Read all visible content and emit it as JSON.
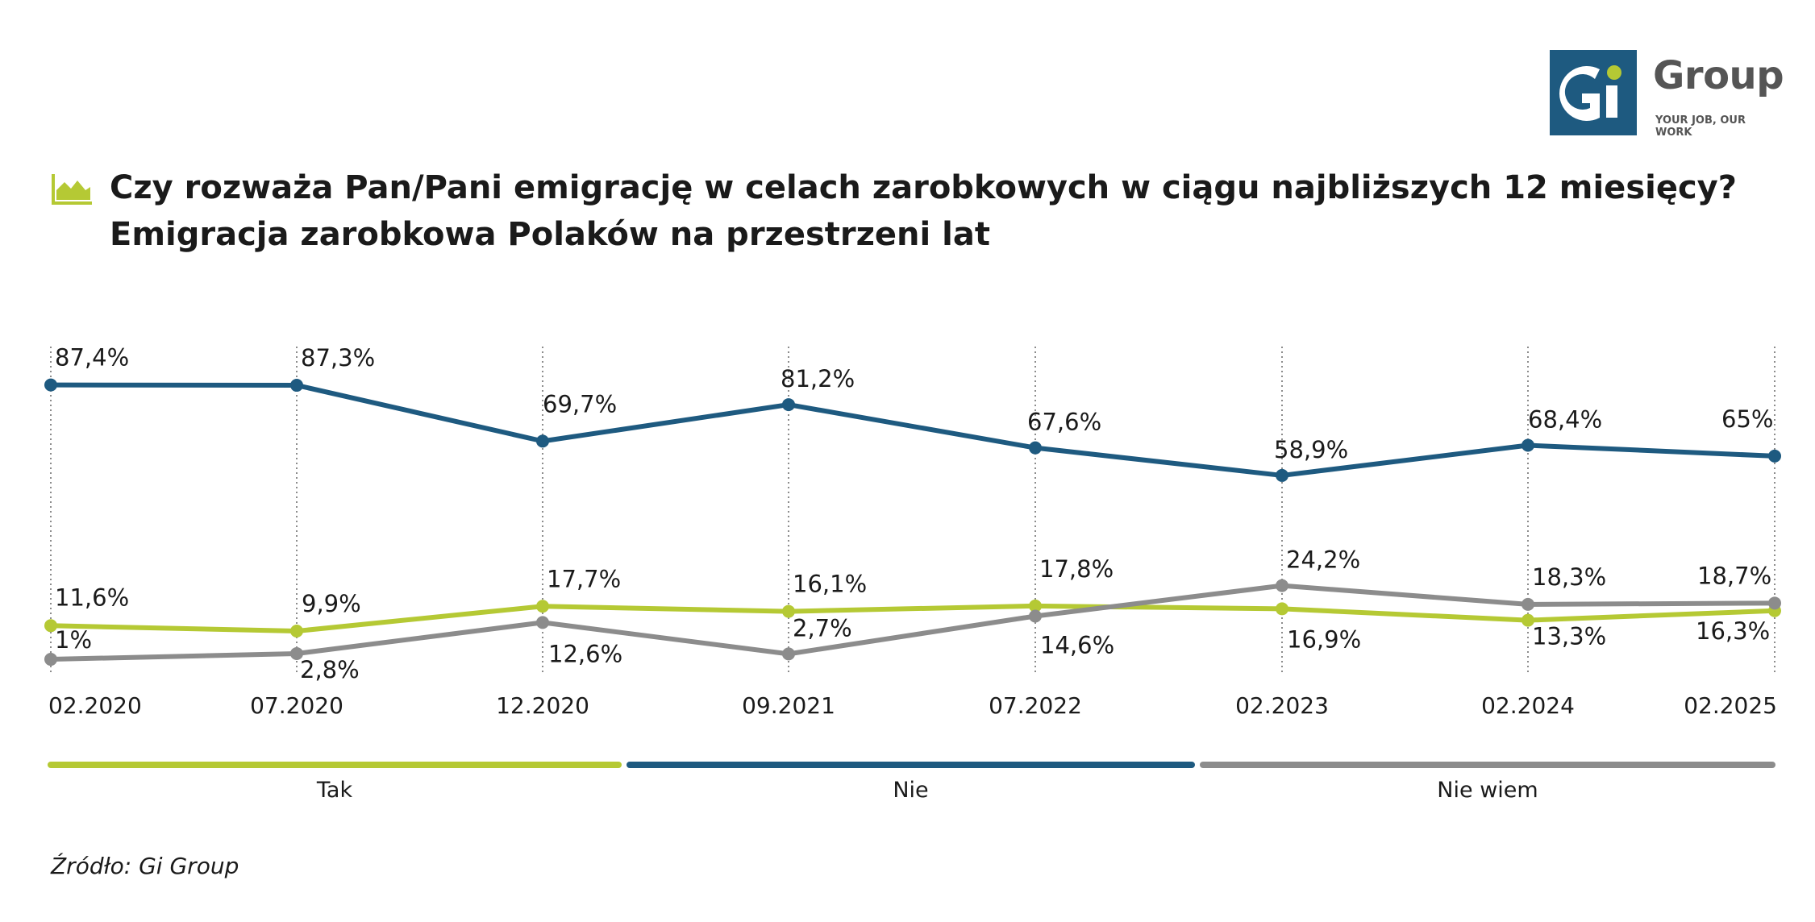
{
  "brand": {
    "name": "Group",
    "mark": "Gi",
    "tagline": "YOUR JOB, OUR WORK"
  },
  "title": {
    "line1": "Czy rozważa Pan/Pani emigrację w celach zarobkowych w ciągu najbliższych 12 miesięcy?",
    "line2": "Emigracja zarobkowa Polaków na przestrzeni lat"
  },
  "source": "Źródło: Gi Group",
  "colors": {
    "tak": "#b5c934",
    "nie": "#1e5a80",
    "nie_wiem": "#8c8c8c",
    "grid": "#666666"
  },
  "chart_data": {
    "type": "line",
    "categories": [
      "02.2020",
      "07.2020",
      "12.2020",
      "09.2021",
      "07.2022",
      "02.2023",
      "02.2024",
      "02.2025"
    ],
    "ylim": [
      0,
      100
    ],
    "series": [
      {
        "key": "tak",
        "name": "Tak",
        "values": [
          11.6,
          9.9,
          17.7,
          16.1,
          17.8,
          16.9,
          13.3,
          16.3
        ],
        "labels": [
          "11,6%",
          "9,9%",
          "17,7%",
          "16,1%",
          "17,8%",
          "16,9%",
          "13,3%",
          "16,3%"
        ]
      },
      {
        "key": "nie",
        "name": "Nie",
        "values": [
          87.4,
          87.3,
          69.7,
          81.2,
          67.6,
          58.9,
          68.4,
          65
        ],
        "labels": [
          "87,4%",
          "87,3%",
          "69,7%",
          "81,2%",
          "67,6%",
          "58,9%",
          "68,4%",
          "65%"
        ]
      },
      {
        "key": "nie_wiem",
        "name": "Nie wiem",
        "values": [
          1,
          2.8,
          12.6,
          2.7,
          14.6,
          24.2,
          18.3,
          18.7
        ],
        "labels": [
          "1%",
          "2,8%",
          "12,6%",
          "2,7%",
          "14,6%",
          "24,2%",
          "18,3%",
          "18,7%"
        ]
      }
    ],
    "legend": "bottom"
  }
}
